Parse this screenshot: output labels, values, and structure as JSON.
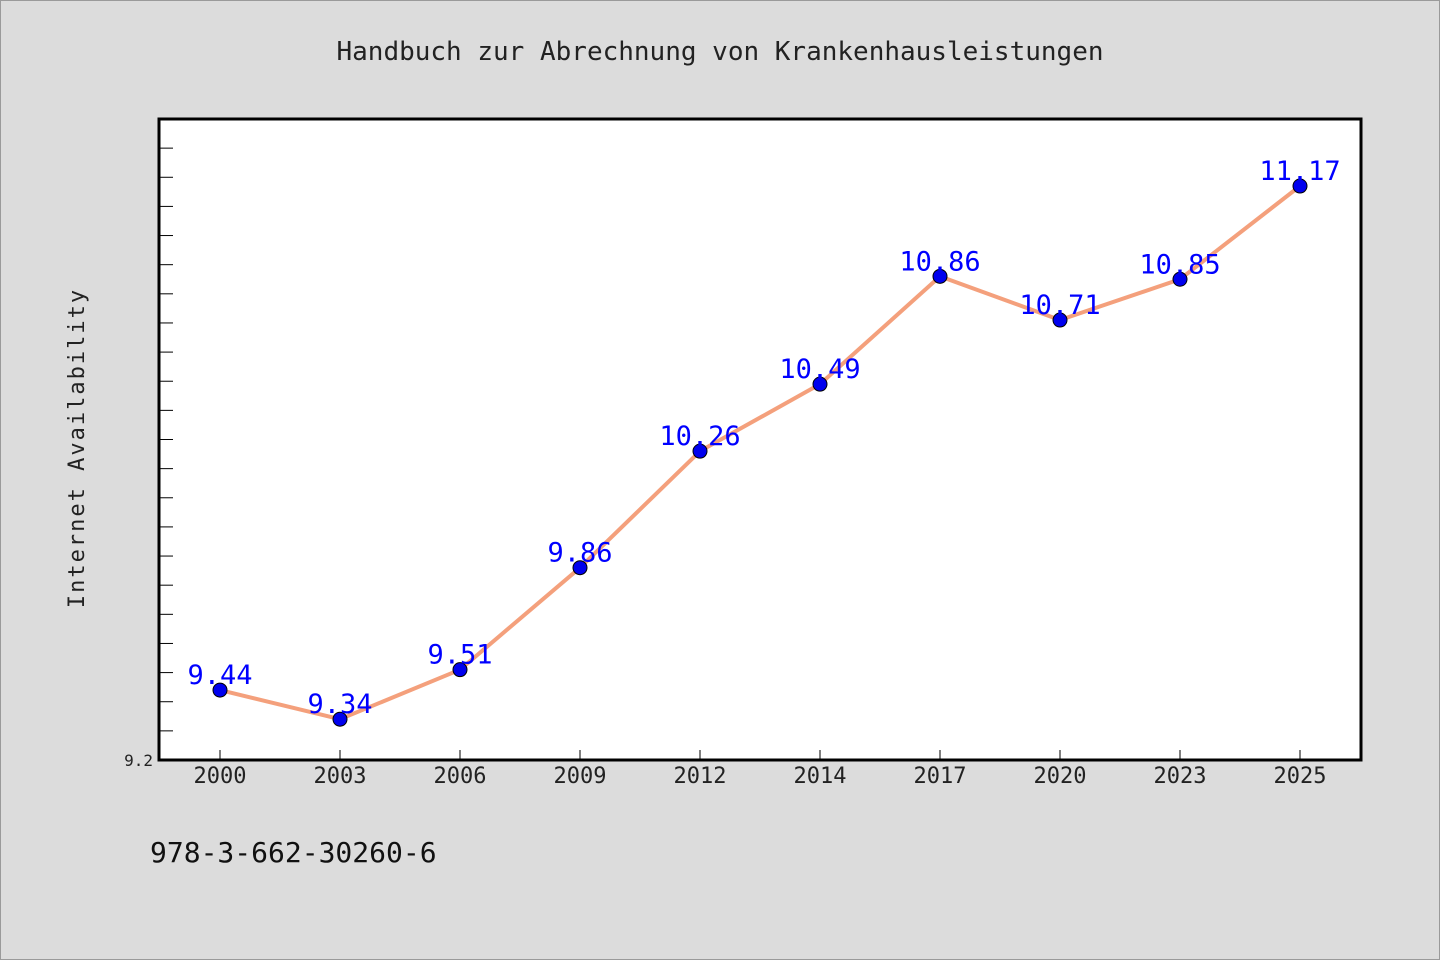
{
  "chart_data": {
    "type": "line",
    "title": "Handbuch zur Abrechnung von Krankenhausleistungen",
    "xlabel": "",
    "ylabel": "Internet Availability",
    "x": [
      "2000",
      "2003",
      "2006",
      "2009",
      "2012",
      "2014",
      "2017",
      "2020",
      "2023",
      "2025"
    ],
    "series": [
      {
        "name": "",
        "values": [
          9.44,
          9.34,
          9.51,
          9.86,
          10.26,
          10.49,
          10.86,
          10.71,
          10.85,
          11.17
        ],
        "labels": [
          "9.44",
          "9.34",
          "9.51",
          "9.86",
          "10.26",
          "10.49",
          "10.86",
          "10.71",
          "10.85",
          "11.17"
        ]
      }
    ],
    "ylim": [
      9.2,
      11.4
    ],
    "y_tick_labels": [
      "9.2"
    ],
    "grid": false,
    "line_color": "#f4a07c",
    "marker_color": "#0000ee",
    "label_color": "#0000ff",
    "plot_background": "#ffffff",
    "page_background": "#dcdcdc"
  },
  "footer": {
    "text": "978-3-662-30260-6"
  }
}
